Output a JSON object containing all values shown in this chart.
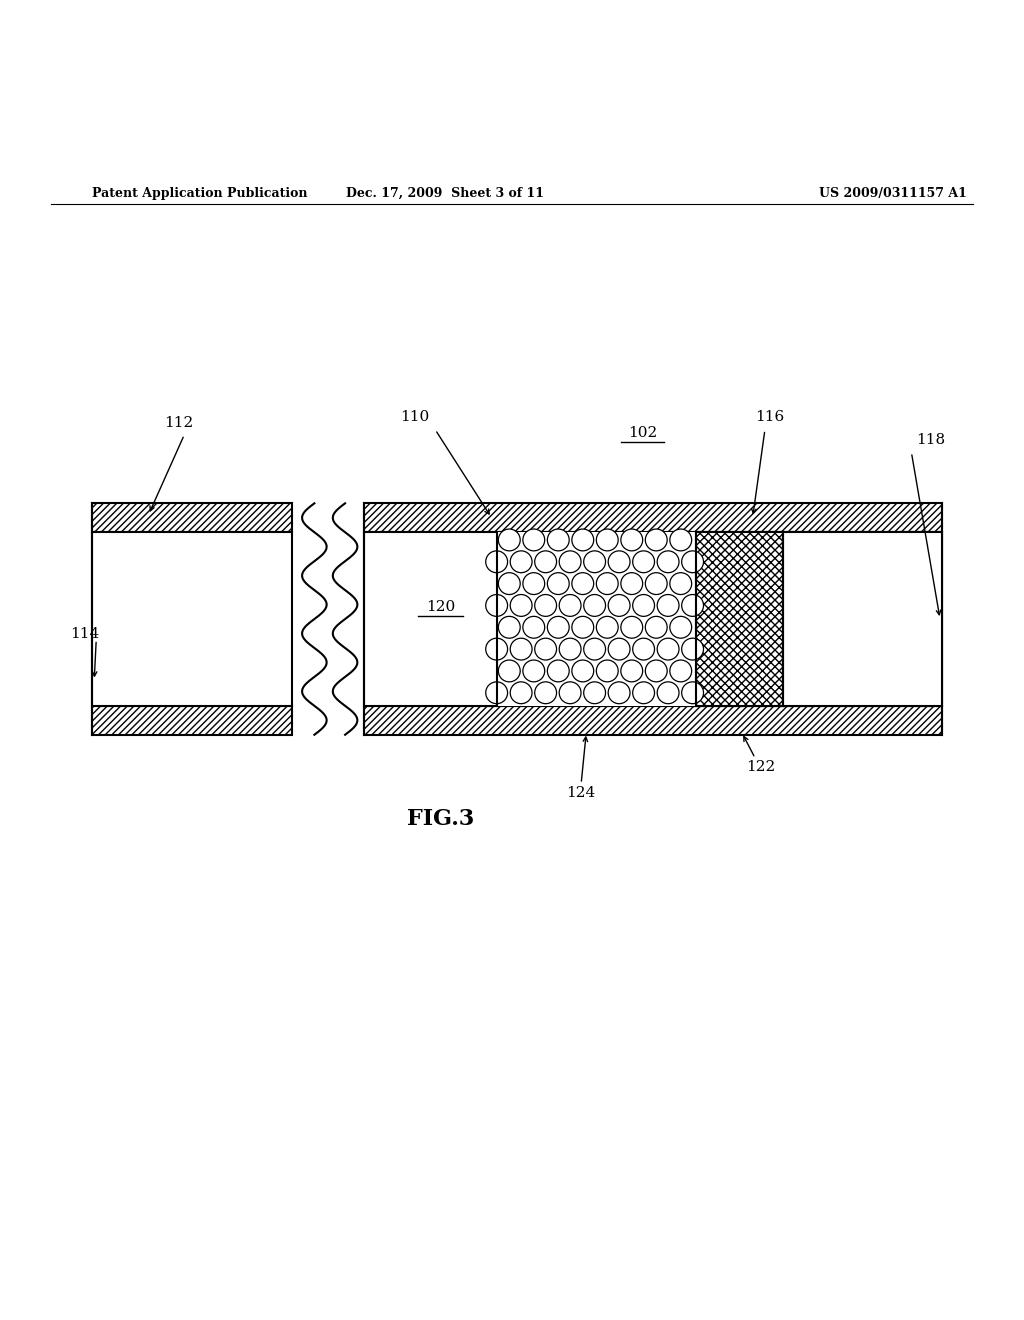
{
  "bg_color": "#ffffff",
  "line_color": "#000000",
  "fig_label": "FIG.3",
  "header_left": "Patent Application Publication",
  "header_mid": "Dec. 17, 2009  Sheet 3 of 11",
  "header_right": "US 2009/0311157 A1"
}
